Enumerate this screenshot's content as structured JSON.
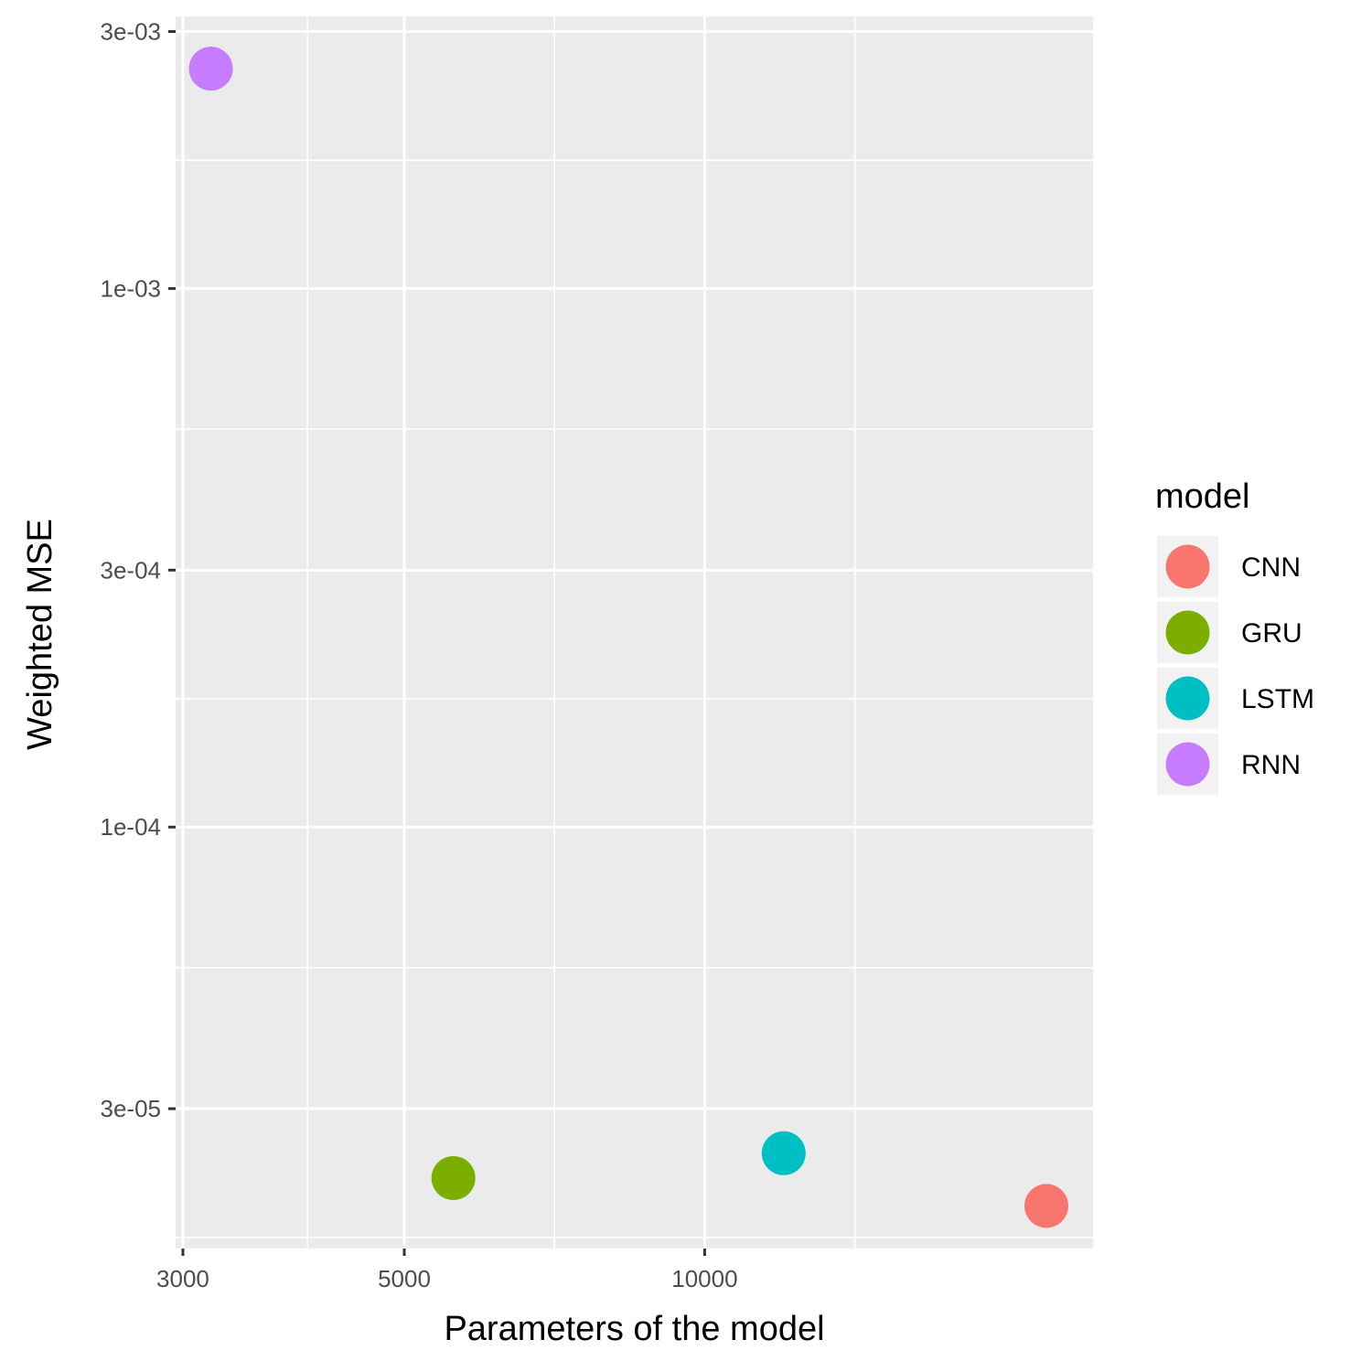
{
  "chart_data": {
    "type": "scatter",
    "title": "",
    "xlabel": "Parameters of the model",
    "ylabel": "Weighted MSE",
    "x_scale": "log10",
    "y_scale": "log10",
    "xlim": [
      2950,
      24500
    ],
    "ylim": [
      1.65e-05,
      0.0032
    ],
    "x_ticks": [
      {
        "value": 3000,
        "label": "3000"
      },
      {
        "value": 5000,
        "label": "5000"
      },
      {
        "value": 10000,
        "label": "10000"
      }
    ],
    "x_minor_gridlines": [
      4000,
      7071,
      14142
    ],
    "y_ticks": [
      {
        "value": 3e-05,
        "label": "3e-05"
      },
      {
        "value": 0.0001,
        "label": "1e-04"
      },
      {
        "value": 0.0003,
        "label": "3e-04"
      },
      {
        "value": 0.001,
        "label": "1e-03"
      },
      {
        "value": 0.003,
        "label": "3e-03"
      }
    ],
    "y_minor_gridlines": [
      1.73e-05,
      5.48e-05,
      0.000173,
      0.000548,
      0.00173
    ],
    "grid": true,
    "legend": {
      "title": "model",
      "position": "right"
    },
    "series": [
      {
        "name": "CNN",
        "color": "#F8766D",
        "x": 22000,
        "y": 1.98e-05
      },
      {
        "name": "GRU",
        "color": "#7CAE00",
        "x": 5600,
        "y": 2.23e-05
      },
      {
        "name": "LSTM",
        "color": "#00BFC4",
        "x": 12000,
        "y": 2.48e-05
      },
      {
        "name": "RNN",
        "color": "#C77CFF",
        "x": 3200,
        "y": 0.00256
      }
    ],
    "colors": {
      "panel_background": "#EBEBEB",
      "gridline": "#FFFFFF",
      "legend_key_background": "#F2F2F2"
    }
  }
}
